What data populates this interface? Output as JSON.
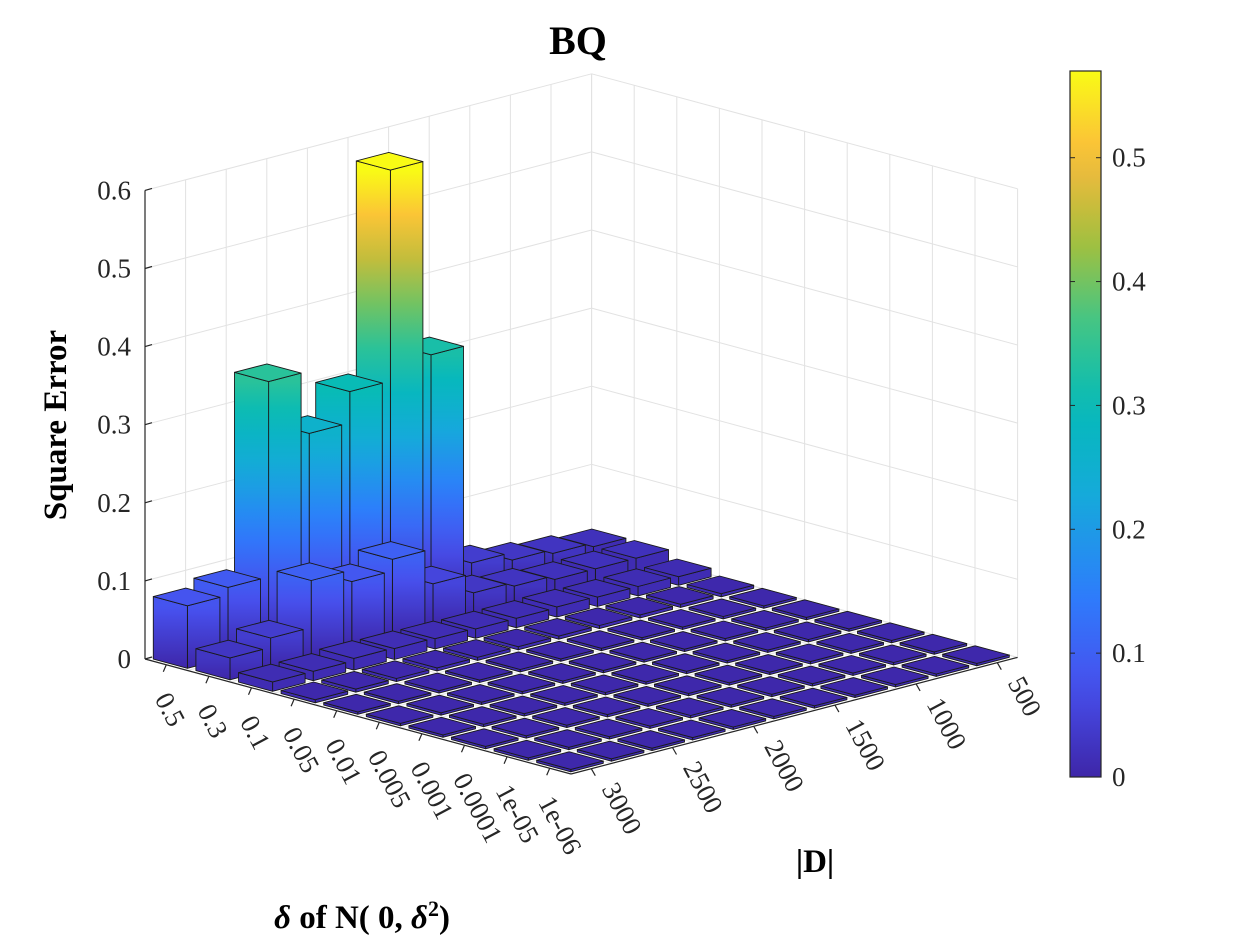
{
  "chart_data": {
    "type": "bar3d",
    "title": "BQ",
    "xlabel_parts": {
      "prefix": "δ",
      "mid": " of N( 0, ",
      "sym": "δ",
      "sup": "2",
      "suffix": ")"
    },
    "ylabel": "|D|",
    "zlabel": "Square Error",
    "delta_ticks": [
      "0.5",
      "0.3",
      "0.1",
      "0.05",
      "0.01",
      "0.005",
      "0.001",
      "0.0001",
      "1e-05",
      "1e-06"
    ],
    "d_ticks": [
      "500",
      "1000",
      "1500",
      "2000",
      "2500",
      "3000"
    ],
    "z_ticks": [
      "0",
      "0.1",
      "0.2",
      "0.3",
      "0.4",
      "0.5",
      "0.6"
    ],
    "zlim": [
      0,
      0.6
    ],
    "d_values": [
      3000,
      2750,
      2500,
      2250,
      2000,
      1750,
      1500,
      1250,
      1000,
      750,
      500
    ],
    "values": [
      [
        0.08,
        0.09,
        0.34,
        0.26,
        0.3,
        0.57,
        0.32,
        0.04,
        0.03,
        0.025,
        0.02
      ],
      [
        0.028,
        0.04,
        0.1,
        0.085,
        0.1,
        0.055,
        0.03,
        0.025,
        0.02,
        0.02,
        0.02
      ],
      [
        0.012,
        0.012,
        0.015,
        0.014,
        0.013,
        0.012,
        0.012,
        0.013,
        0.012,
        0.012,
        0.011
      ],
      [
        0.004,
        0.004,
        0.004,
        0.004,
        0.004,
        0.004,
        0.004,
        0.004,
        0.004,
        0.004,
        0.004
      ],
      [
        0.003,
        0.003,
        0.003,
        0.003,
        0.003,
        0.003,
        0.003,
        0.003,
        0.003,
        0.003,
        0.003
      ],
      [
        0.003,
        0.003,
        0.003,
        0.003,
        0.003,
        0.003,
        0.003,
        0.003,
        0.003,
        0.003,
        0.003
      ],
      [
        0.003,
        0.003,
        0.003,
        0.003,
        0.003,
        0.003,
        0.003,
        0.003,
        0.003,
        0.003,
        0.003
      ],
      [
        0.003,
        0.003,
        0.003,
        0.003,
        0.003,
        0.003,
        0.003,
        0.003,
        0.003,
        0.003,
        0.003
      ],
      [
        0.003,
        0.003,
        0.003,
        0.003,
        0.003,
        0.003,
        0.003,
        0.003,
        0.003,
        0.003,
        0.003
      ],
      [
        0.003,
        0.003,
        0.003,
        0.003,
        0.003,
        0.003,
        0.003,
        0.003,
        0.003,
        0.003,
        0.003
      ]
    ],
    "colorbar": {
      "ticks": [
        "0",
        "0.1",
        "0.2",
        "0.3",
        "0.4",
        "0.5"
      ],
      "range": [
        0,
        0.57
      ],
      "colormap": "parula"
    },
    "grid": true
  }
}
